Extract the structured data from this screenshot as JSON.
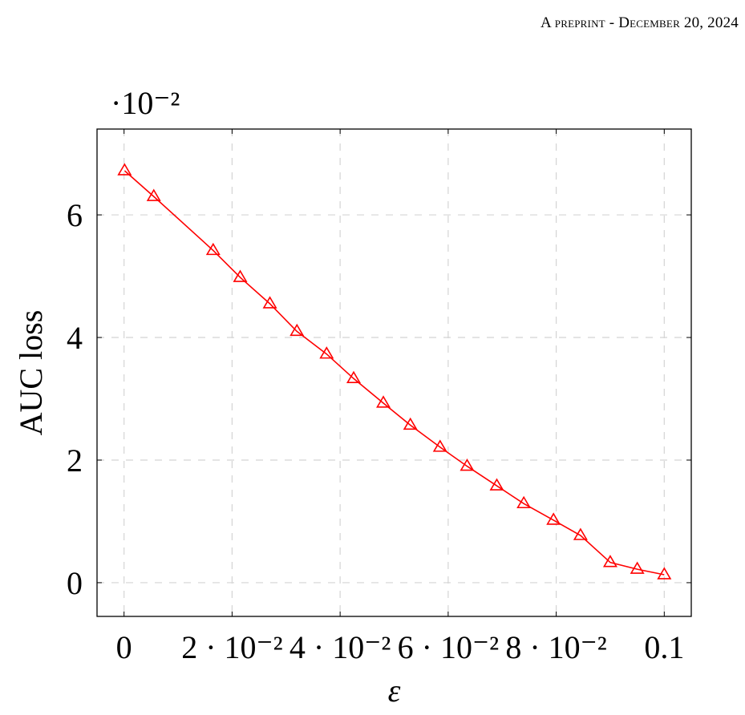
{
  "header": {
    "text": "A preprint - December 20, 2024"
  },
  "chart_data": {
    "type": "line",
    "title": "",
    "xlabel": "ε",
    "ylabel": "AUC loss",
    "y_scale_note": "·10⁻²",
    "xlim": [
      -0.005,
      0.105
    ],
    "ylim": [
      -0.55,
      7.4
    ],
    "grid": true,
    "x_ticks": [
      0,
      0.02,
      0.04,
      0.06,
      0.08,
      0.1
    ],
    "x_tick_labels": [
      "0",
      "2 · 10⁻²",
      "4 · 10⁻²",
      "6 · 10⁻²",
      "8 · 10⁻²",
      "0.1"
    ],
    "y_ticks": [
      0,
      2,
      4,
      6
    ],
    "y_tick_labels": [
      "0",
      "2",
      "4",
      "6"
    ],
    "series": [
      {
        "color": "#ff0000",
        "marker": "triangle",
        "x": [
          0.0001,
          0.0055,
          0.0165,
          0.0215,
          0.027,
          0.032,
          0.0375,
          0.0425,
          0.048,
          0.053,
          0.0585,
          0.0635,
          0.069,
          0.074,
          0.0795,
          0.0845,
          0.09,
          0.095,
          0.1
        ],
        "y": [
          6.72,
          6.3,
          5.42,
          4.98,
          4.55,
          4.1,
          3.73,
          3.33,
          2.93,
          2.57,
          2.21,
          1.9,
          1.58,
          1.29,
          1.02,
          0.77,
          0.33,
          0.22,
          0.13
        ]
      }
    ]
  }
}
